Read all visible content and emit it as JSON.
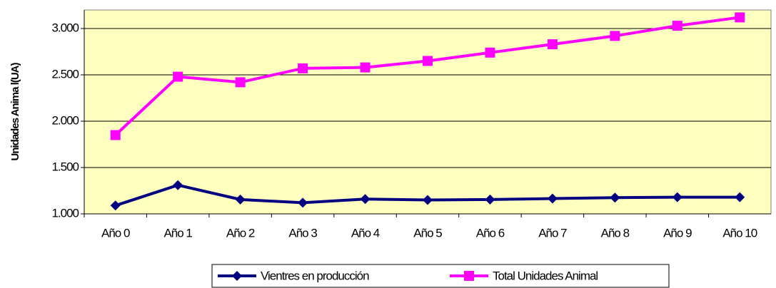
{
  "chart_data": {
    "type": "line",
    "y_label": "Unidades Anima l(UA)",
    "categories": [
      "Año 0",
      "Año 1",
      "Año 2",
      "Año 3",
      "Año 4",
      "Año 5",
      "Año 6",
      "Año 7",
      "Año 8",
      "Año 9",
      "Año 10"
    ],
    "series": [
      {
        "name": "Vientres en producción",
        "color": "#000080",
        "marker": "diamond",
        "values": [
          1090,
          1310,
          1155,
          1120,
          1160,
          1150,
          1155,
          1165,
          1175,
          1180,
          1180
        ]
      },
      {
        "name": "Total Unidades Animal",
        "color": "#ff00ff",
        "marker": "square",
        "values": [
          1850,
          2480,
          2420,
          2570,
          2580,
          2650,
          2740,
          2830,
          2920,
          3030,
          3120
        ]
      }
    ],
    "ylim": [
      1000,
      3200
    ],
    "yticks": [
      {
        "value": 1000,
        "label": "1.000"
      },
      {
        "value": 1500,
        "label": "1.500"
      },
      {
        "value": 2000,
        "label": "2.000"
      },
      {
        "value": 2500,
        "label": "2.500"
      },
      {
        "value": 3000,
        "label": "3.000"
      }
    ],
    "grid": true,
    "legend": "bottom",
    "background": "#ffffc0"
  }
}
